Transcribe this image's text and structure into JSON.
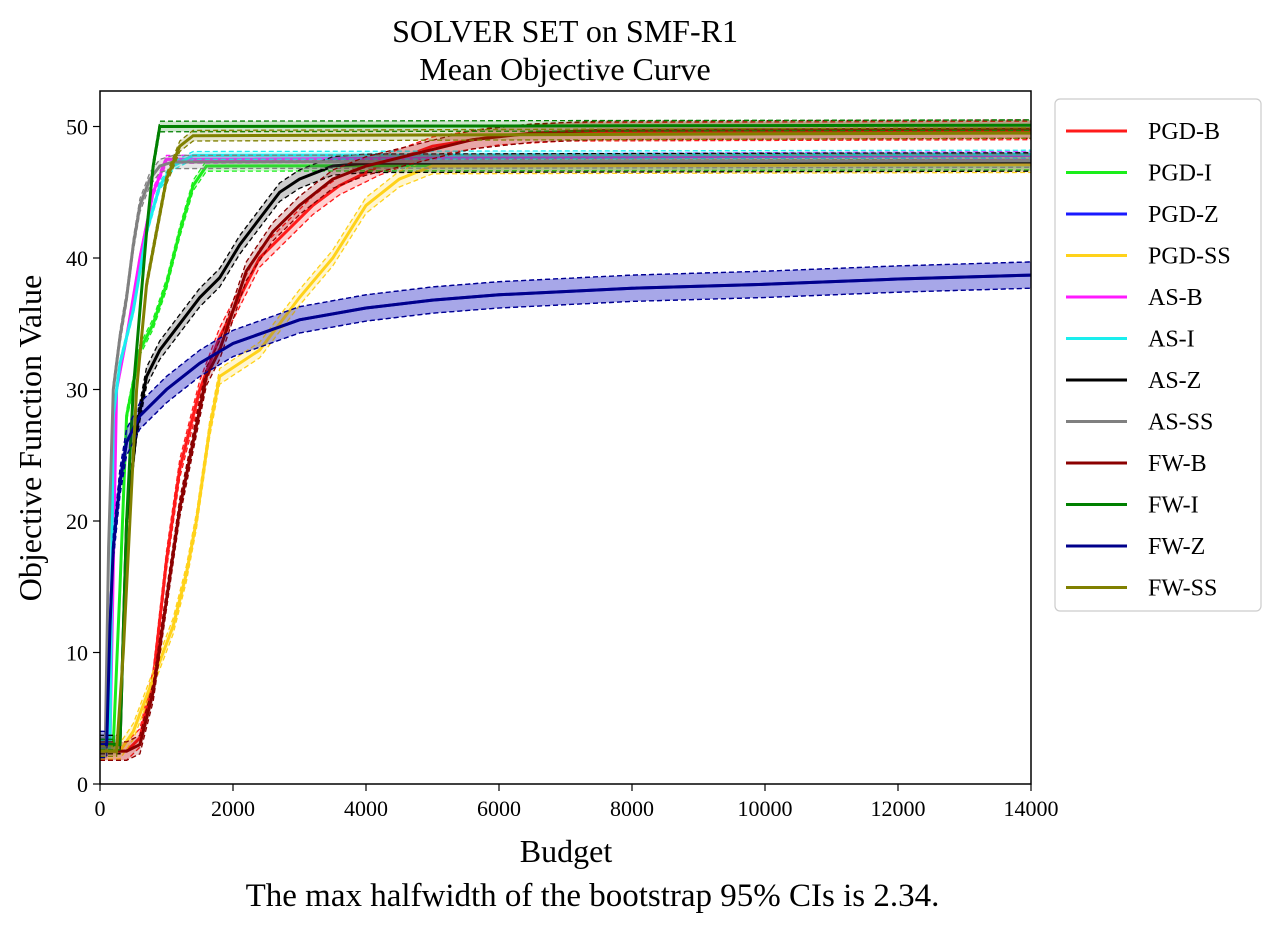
{
  "chart_data": {
    "type": "line",
    "title": "SOLVER SET on SMF-R1",
    "subtitle": "Mean Objective Curve",
    "xlabel": "Budget",
    "ylabel": "Objective Function Value",
    "xlim": [
      0,
      14000
    ],
    "ylim": [
      0,
      52.7
    ],
    "x_ticks": [
      0,
      2000,
      4000,
      6000,
      8000,
      10000,
      12000,
      14000
    ],
    "y_ticks": [
      0,
      10,
      20,
      30,
      40,
      50
    ],
    "grid": false,
    "legend_position": "outside-right",
    "series": [
      {
        "name": "PGD-B",
        "color": "#ff1a1a",
        "ci": 0.7,
        "points": [
          [
            0,
            2.5
          ],
          [
            400,
            2.5
          ],
          [
            600,
            3.5
          ],
          [
            800,
            8
          ],
          [
            1000,
            17
          ],
          [
            1200,
            24
          ],
          [
            1500,
            30
          ],
          [
            1800,
            34
          ],
          [
            2100,
            37
          ],
          [
            2400,
            40
          ],
          [
            2800,
            42
          ],
          [
            3200,
            44
          ],
          [
            3600,
            45.5
          ],
          [
            4200,
            47
          ],
          [
            5000,
            48.5
          ],
          [
            6000,
            49.3
          ],
          [
            7000,
            49.6
          ],
          [
            14000,
            49.7
          ]
        ]
      },
      {
        "name": "PGD-I",
        "color": "#1aee1a",
        "ci": 0.4,
        "points": [
          [
            0,
            3
          ],
          [
            200,
            3
          ],
          [
            300,
            15
          ],
          [
            400,
            28
          ],
          [
            600,
            33
          ],
          [
            800,
            35
          ],
          [
            1000,
            38
          ],
          [
            1200,
            42
          ],
          [
            1400,
            45.5
          ],
          [
            1600,
            47
          ],
          [
            14000,
            47.1
          ]
        ]
      },
      {
        "name": "PGD-Z",
        "color": "#1a1aff",
        "ci": 1.0,
        "points": [
          [
            0,
            3
          ],
          [
            100,
            3
          ],
          [
            150,
            12
          ],
          [
            200,
            18
          ],
          [
            300,
            23
          ],
          [
            400,
            26
          ],
          [
            600,
            28
          ],
          [
            1000,
            30
          ],
          [
            1500,
            32
          ],
          [
            2000,
            33.5
          ],
          [
            3000,
            35.3
          ],
          [
            4000,
            36.2
          ],
          [
            5000,
            36.8
          ],
          [
            6000,
            37.2
          ],
          [
            8000,
            37.7
          ],
          [
            10000,
            38.0
          ],
          [
            12000,
            38.4
          ],
          [
            14000,
            38.7
          ]
        ]
      },
      {
        "name": "PGD-SS",
        "color": "#ffd21a",
        "ci": 0.6,
        "points": [
          [
            0,
            2.5
          ],
          [
            300,
            2.5
          ],
          [
            500,
            4
          ],
          [
            800,
            8
          ],
          [
            1100,
            12
          ],
          [
            1300,
            16
          ],
          [
            1450,
            20
          ],
          [
            1650,
            27
          ],
          [
            1800,
            31
          ],
          [
            2400,
            33
          ],
          [
            3000,
            37
          ],
          [
            3500,
            40
          ],
          [
            4000,
            44
          ],
          [
            4500,
            46
          ],
          [
            5000,
            47
          ],
          [
            14000,
            47.1
          ]
        ]
      },
      {
        "name": "AS-B",
        "color": "#ff1aff",
        "ci": 0.3,
        "points": [
          [
            0,
            3
          ],
          [
            150,
            3
          ],
          [
            250,
            30
          ],
          [
            400,
            34
          ],
          [
            600,
            40
          ],
          [
            800,
            45
          ],
          [
            1000,
            47.5
          ],
          [
            14000,
            47.8
          ]
        ]
      },
      {
        "name": "AS-I",
        "color": "#1aeeee",
        "ci": 0.3,
        "points": [
          [
            0,
            3
          ],
          [
            150,
            3
          ],
          [
            200,
            28
          ],
          [
            300,
            32
          ],
          [
            500,
            36
          ],
          [
            700,
            42
          ],
          [
            900,
            45.5
          ],
          [
            1100,
            47
          ],
          [
            1400,
            47.8
          ],
          [
            14000,
            47.9
          ]
        ]
      },
      {
        "name": "AS-Z",
        "color": "#000000",
        "ci": 0.7,
        "points": [
          [
            0,
            3
          ],
          [
            300,
            3
          ],
          [
            400,
            20
          ],
          [
            550,
            27
          ],
          [
            700,
            31
          ],
          [
            900,
            33
          ],
          [
            1200,
            35
          ],
          [
            1500,
            37
          ],
          [
            1800,
            38.5
          ],
          [
            2100,
            41
          ],
          [
            2400,
            43
          ],
          [
            2700,
            45
          ],
          [
            3000,
            46
          ],
          [
            3500,
            47
          ],
          [
            4000,
            47.2
          ],
          [
            14000,
            47.3
          ]
        ]
      },
      {
        "name": "AS-SS",
        "color": "#808080",
        "ci": 0.5,
        "points": [
          [
            0,
            3
          ],
          [
            80,
            3
          ],
          [
            130,
            18
          ],
          [
            200,
            30
          ],
          [
            300,
            34
          ],
          [
            400,
            37
          ],
          [
            500,
            41
          ],
          [
            600,
            44
          ],
          [
            750,
            46
          ],
          [
            900,
            47
          ],
          [
            1100,
            47.3
          ],
          [
            14000,
            47.4
          ]
        ]
      },
      {
        "name": "FW-B",
        "color": "#8b0000",
        "ci": 0.7,
        "points": [
          [
            0,
            2.5
          ],
          [
            400,
            2.5
          ],
          [
            600,
            3
          ],
          [
            800,
            7
          ],
          [
            1000,
            14
          ],
          [
            1200,
            21
          ],
          [
            1400,
            26
          ],
          [
            1600,
            31
          ],
          [
            1800,
            33
          ],
          [
            2000,
            36
          ],
          [
            2200,
            39
          ],
          [
            2600,
            42
          ],
          [
            3000,
            44
          ],
          [
            3500,
            46
          ],
          [
            4000,
            47
          ],
          [
            4800,
            48
          ],
          [
            5600,
            49
          ],
          [
            6500,
            49.5
          ],
          [
            7500,
            49.7
          ],
          [
            14000,
            49.8
          ]
        ]
      },
      {
        "name": "FW-I",
        "color": "#008000",
        "ci": 0.4,
        "points": [
          [
            0,
            3
          ],
          [
            300,
            3
          ],
          [
            400,
            20
          ],
          [
            500,
            30
          ],
          [
            600,
            36
          ],
          [
            700,
            42
          ],
          [
            800,
            47
          ],
          [
            900,
            50
          ],
          [
            14000,
            50.1
          ]
        ]
      },
      {
        "name": "FW-Z",
        "color": "#00008b",
        "ci": 1.0,
        "points": [
          [
            0,
            3
          ],
          [
            100,
            3
          ],
          [
            150,
            12
          ],
          [
            200,
            18
          ],
          [
            300,
            23
          ],
          [
            400,
            26
          ],
          [
            600,
            28
          ],
          [
            1000,
            30
          ],
          [
            1500,
            32
          ],
          [
            2000,
            33.5
          ],
          [
            3000,
            35.3
          ],
          [
            4000,
            36.2
          ],
          [
            5000,
            36.8
          ],
          [
            6000,
            37.2
          ],
          [
            8000,
            37.7
          ],
          [
            10000,
            38.0
          ],
          [
            12000,
            38.4
          ],
          [
            14000,
            38.7
          ]
        ]
      },
      {
        "name": "FW-SS",
        "color": "#808000",
        "ci": 0.4,
        "points": [
          [
            0,
            2.5
          ],
          [
            250,
            2.5
          ],
          [
            350,
            10
          ],
          [
            450,
            20
          ],
          [
            550,
            30
          ],
          [
            700,
            38
          ],
          [
            850,
            42
          ],
          [
            1000,
            46
          ],
          [
            1200,
            48.5
          ],
          [
            1400,
            49.3
          ],
          [
            14000,
            49.5
          ]
        ]
      }
    ]
  },
  "caption": "The max halfwidth of the bootstrap 95% CIs is 2.34."
}
